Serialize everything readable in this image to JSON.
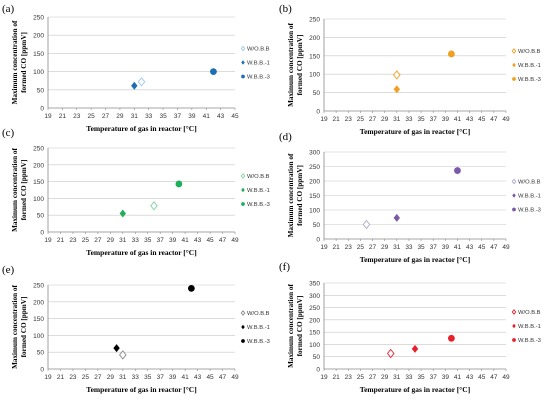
{
  "chart_data": [
    {
      "panel": "(a)",
      "type": "scatter",
      "xlabel": "Temperature of gas in reactor [°C]",
      "ylabel_lines": [
        "Maximum concentration of",
        "formed CO [ppmV]"
      ],
      "xlim": [
        19,
        45
      ],
      "xticks": [
        19,
        21,
        23,
        25,
        27,
        29,
        31,
        33,
        35,
        37,
        39,
        41,
        43,
        45
      ],
      "ylim": [
        0,
        250
      ],
      "yticks": [
        0,
        50,
        100,
        150,
        200,
        250
      ],
      "grid": "horizontal",
      "legend_position": "right",
      "series": [
        {
          "name": "W/O.B.B",
          "marker": "diamond-open",
          "color": "#9dc8e8",
          "points": [
            [
              32,
              72
            ]
          ]
        },
        {
          "name": "W.B.B.-1",
          "marker": "diamond",
          "color": "#1f6fb5",
          "points": [
            [
              31,
              61
            ]
          ]
        },
        {
          "name": "W.B.B.-3",
          "marker": "circle",
          "color": "#1f6fb5",
          "points": [
            [
              42,
              100
            ]
          ]
        }
      ]
    },
    {
      "panel": "(b)",
      "type": "scatter",
      "xlabel": "Temperature of gas in reactor [°C]",
      "ylabel_lines": [
        "Maximum concentration of",
        "formed CO [ppmV]"
      ],
      "xlim": [
        19,
        49
      ],
      "xticks": [
        19,
        21,
        23,
        25,
        27,
        29,
        31,
        33,
        35,
        37,
        39,
        41,
        43,
        45,
        47,
        49
      ],
      "ylim": [
        0,
        250
      ],
      "yticks": [
        0,
        50,
        100,
        150,
        200,
        250
      ],
      "grid": "horizontal",
      "legend_position": "right",
      "series": [
        {
          "name": "W/O.B.B",
          "marker": "diamond-open",
          "color": "#f0a020",
          "points": [
            [
              31,
              98
            ]
          ]
        },
        {
          "name": "W.B.B.-1",
          "marker": "diamond",
          "color": "#f0a020",
          "points": [
            [
              31,
              59
            ]
          ]
        },
        {
          "name": "W.B.B.-3",
          "marker": "circle",
          "color": "#f0a020",
          "points": [
            [
              40,
              155
            ]
          ]
        }
      ]
    },
    {
      "panel": "(c)",
      "type": "scatter",
      "xlabel": "Temperature of gas in reactor [°C]",
      "ylabel_lines": [
        "Maximum concentration of",
        "formed CO [ppmV]"
      ],
      "xlim": [
        19,
        49
      ],
      "xticks": [
        19,
        21,
        23,
        25,
        27,
        29,
        31,
        33,
        35,
        37,
        39,
        41,
        43,
        45,
        47,
        49
      ],
      "ylim": [
        0,
        250
      ],
      "yticks": [
        0,
        50,
        100,
        150,
        200,
        250
      ],
      "grid": "horizontal",
      "legend_position": "right",
      "series": [
        {
          "name": "W/O.B.B",
          "marker": "diamond-open",
          "color": "#7fd4a0",
          "points": [
            [
              36,
              78
            ]
          ]
        },
        {
          "name": "W.B.B.-1",
          "marker": "diamond",
          "color": "#1fae5a",
          "points": [
            [
              31,
              55
            ]
          ]
        },
        {
          "name": "W.B.B.-3",
          "marker": "circle",
          "color": "#1fae5a",
          "points": [
            [
              40,
              143
            ]
          ]
        }
      ]
    },
    {
      "panel": "(d)",
      "type": "scatter",
      "xlabel": "Temperature of gas in reactor [°C]",
      "ylabel_lines": [
        "Maximum concentration of",
        "formed CO [ppmV]"
      ],
      "xlim": [
        19,
        49
      ],
      "xticks": [
        19,
        21,
        23,
        25,
        27,
        29,
        31,
        33,
        35,
        37,
        39,
        41,
        43,
        45,
        47,
        49
      ],
      "ylim": [
        0,
        300
      ],
      "yticks": [
        0,
        50,
        100,
        150,
        200,
        250,
        300
      ],
      "grid": "horizontal",
      "legend_position": "right",
      "series": [
        {
          "name": "W/O.B.B",
          "marker": "diamond-open",
          "color": "#b0a8c8",
          "points": [
            [
              26,
              50
            ]
          ]
        },
        {
          "name": "W.B.B.-1",
          "marker": "diamond",
          "color": "#7a5aa8",
          "points": [
            [
              31,
              73
            ]
          ]
        },
        {
          "name": "W.B.B.-3",
          "marker": "circle",
          "color": "#7a5aa8",
          "points": [
            [
              41,
              236
            ]
          ]
        }
      ]
    },
    {
      "panel": "(e)",
      "type": "scatter",
      "xlabel": "Temperature of gas in reactor [°C]",
      "ylabel_lines": [
        "Maximum concentration of",
        "formed CO [ppmV]"
      ],
      "xlim": [
        19,
        49
      ],
      "xticks": [
        19,
        21,
        23,
        25,
        27,
        29,
        31,
        33,
        35,
        37,
        39,
        41,
        43,
        45,
        47,
        49
      ],
      "ylim": [
        0,
        250
      ],
      "yticks": [
        0,
        50,
        100,
        150,
        200,
        250
      ],
      "grid": "horizontal",
      "legend_position": "right",
      "series": [
        {
          "name": "W/O.B.B",
          "marker": "diamond-open",
          "color": "#888888",
          "points": [
            [
              31,
              42
            ]
          ]
        },
        {
          "name": "W.B.B.-1",
          "marker": "diamond",
          "color": "#000000",
          "points": [
            [
              30,
              62
            ]
          ]
        },
        {
          "name": "W.B.B.-3",
          "marker": "circle",
          "color": "#000000",
          "points": [
            [
              42,
              240
            ]
          ]
        }
      ]
    },
    {
      "panel": "(f)",
      "type": "scatter",
      "xlabel": "Temperature of gas in reactor [°C]",
      "ylabel_lines": [
        "Maximum concentration of",
        "formed CO [ppmV]"
      ],
      "xlim": [
        19,
        49
      ],
      "xticks": [
        19,
        21,
        23,
        25,
        27,
        29,
        31,
        33,
        35,
        37,
        39,
        41,
        43,
        45,
        47,
        49
      ],
      "ylim": [
        0,
        350
      ],
      "yticks": [
        0,
        50,
        100,
        150,
        200,
        250,
        300,
        350
      ],
      "grid": "horizontal",
      "legend_position": "right",
      "series": [
        {
          "name": "W/O.B.B",
          "marker": "diamond-open",
          "color": "#e8202a",
          "points": [
            [
              30,
              63
            ]
          ]
        },
        {
          "name": "W.B.B.-1",
          "marker": "diamond",
          "color": "#e8202a",
          "points": [
            [
              34,
              82
            ]
          ]
        },
        {
          "name": "W.B.B.-3",
          "marker": "circle",
          "color": "#e8202a",
          "points": [
            [
              40,
              125
            ]
          ]
        }
      ]
    }
  ]
}
